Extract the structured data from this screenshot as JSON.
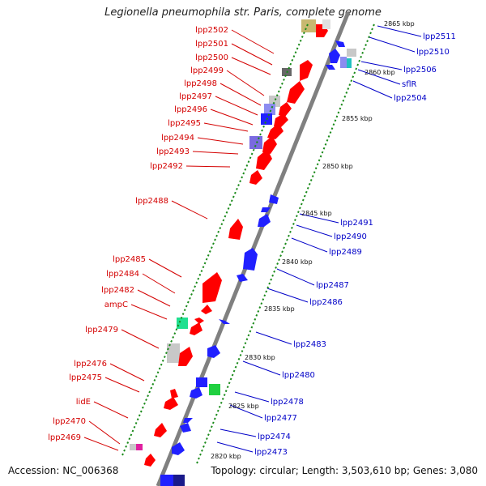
{
  "title": "Legionella pneumophila str. Paris, complete genome",
  "accession": "Accession: NC_006368",
  "summary": "Topology: circular; Length: 3,503,610 bp; Genes: 3,080",
  "colors": {
    "forward_label": "#d40000",
    "reverse_label": "#0000c8",
    "forward_feature": "#ff0000",
    "reverse_feature": "#0000ff",
    "backbone": "#808080",
    "forward_tick": "#1a8a1a"
  },
  "scale_labels": [
    "2820 kbp",
    "2825 kbp",
    "2830 kbp",
    "2835 kbp",
    "2840 kbp",
    "2845 kbp",
    "2850 kbp",
    "2855 kbp",
    "2860 kbp",
    "2865 kbp"
  ],
  "forward_genes": [
    "lpp2502",
    "lpp2501",
    "lpp2500",
    "lpp2499",
    "lpp2498",
    "lpp2497",
    "lpp2496",
    "lpp2495",
    "lpp2494",
    "lpp2493",
    "lpp2492",
    "lpp2488",
    "lpp2485",
    "lpp2484",
    "lpp2482",
    "ampC",
    "lpp2479",
    "lpp2476",
    "lpp2475",
    "lidE",
    "lpp2470",
    "lpp2469"
  ],
  "reverse_genes": [
    "lpp2511",
    "lpp2510",
    "lpp2506",
    "sflR",
    "lpp2504",
    "lpp2491",
    "lpp2490",
    "lpp2489",
    "lpp2487",
    "lpp2486",
    "lpp2483",
    "lpp2480",
    "lpp2478",
    "lpp2477",
    "lpp2474",
    "lpp2473"
  ]
}
